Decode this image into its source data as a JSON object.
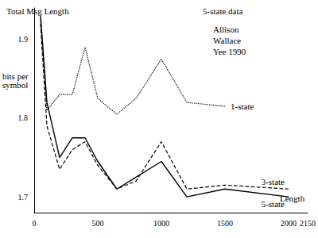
{
  "chart_data": {
    "type": "line",
    "title": "Total Msg Length",
    "x_label": "Length",
    "y_label": "bits per symbol",
    "annotations": [
      "5-state data",
      "Allison",
      "Wallace",
      "Yee 1990"
    ],
    "x": [
      50,
      100,
      200,
      300,
      400,
      500,
      650,
      800,
      1000,
      1200,
      1500,
      2000
    ],
    "series": [
      {
        "name": "1-state",
        "color": "#000000",
        "line_style": "dotted",
        "values": [
          1.925,
          1.81,
          1.83,
          1.83,
          1.89,
          1.825,
          1.805,
          1.825,
          1.875,
          1.82,
          1.815,
          null
        ]
      },
      {
        "name": "3-state",
        "color": "#000000",
        "line_style": "dashed",
        "values": [
          1.92,
          1.79,
          1.735,
          1.76,
          1.77,
          1.74,
          1.71,
          1.72,
          1.77,
          1.71,
          1.715,
          1.71
        ]
      },
      {
        "name": "5-state",
        "color": "#000000",
        "line_style": "solid",
        "values": [
          1.93,
          1.82,
          1.75,
          1.775,
          1.775,
          1.745,
          1.71,
          1.725,
          1.745,
          1.7,
          1.71,
          1.7
        ]
      }
    ],
    "xlim": [
      0,
      2150
    ],
    "ylim": [
      1.68,
      1.94
    ],
    "xticks": [
      0,
      500,
      1000,
      1500,
      2000
    ],
    "yticks": [
      1.7,
      1.8,
      1.9
    ],
    "grid": false
  }
}
